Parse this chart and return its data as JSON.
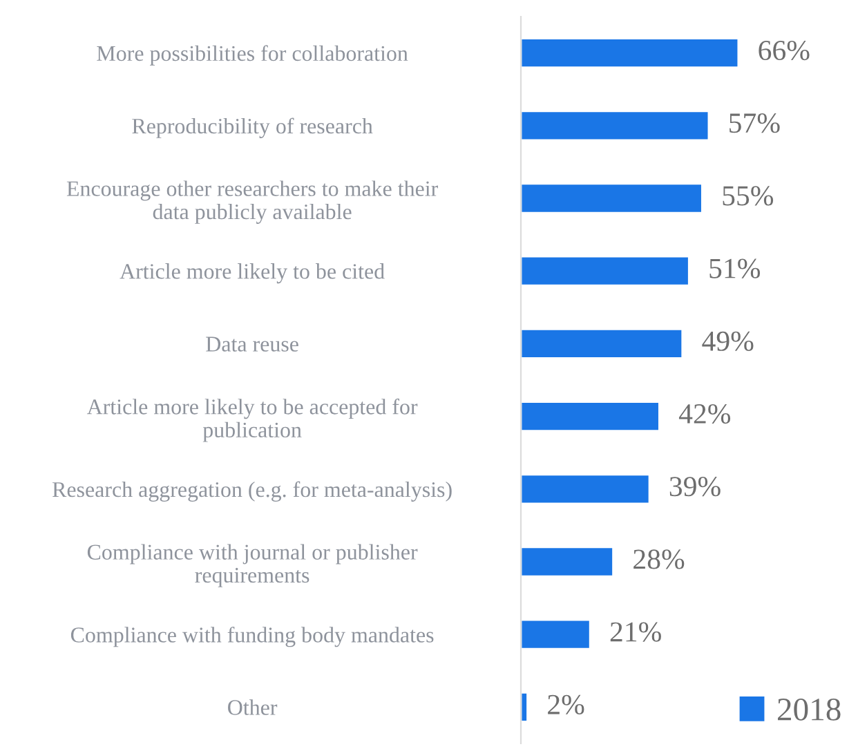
{
  "chart_data": {
    "type": "bar",
    "orientation": "horizontal",
    "categories": [
      "More possibilities for collaboration",
      "Reproducibility of research",
      "Encourage other researchers to make their\ndata publicly available",
      "Article more likely to be cited",
      "Data reuse",
      "Article more likely to be accepted for\npublication",
      "Research aggregation (e.g. for meta-analysis)",
      "Compliance with journal or publisher\nrequirements",
      "Compliance with funding body mandates",
      "Other"
    ],
    "series": [
      {
        "name": "2018",
        "color": "#1a76e6",
        "values": [
          66,
          57,
          55,
          51,
          49,
          42,
          39,
          28,
          21,
          2
        ],
        "value_labels": [
          "66%",
          "57%",
          "55%",
          "51%",
          "49%",
          "42%",
          "39%",
          "28%",
          "21%",
          "2%"
        ]
      }
    ],
    "legend": "bottom right",
    "grid": false
  }
}
